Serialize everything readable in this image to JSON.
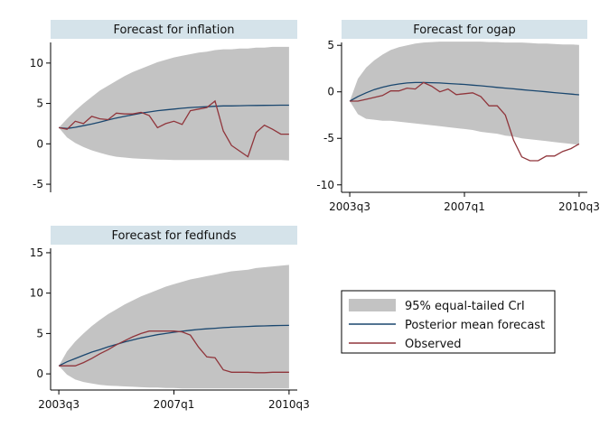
{
  "chart_data": {
    "type": "line",
    "x_ticks": [
      "2003q3",
      "2007q1",
      "2010q3"
    ],
    "x_tick_values": [
      0,
      14,
      28
    ],
    "x_range": [
      -1,
      29
    ],
    "colors": {
      "band": "#c3c3c3",
      "mean": "#1a476f",
      "observed": "#90353b",
      "title_bg": "#d5e3ea"
    },
    "legend": {
      "position": "bottom-right",
      "entries": [
        {
          "label": "95% equal-tailed CrI",
          "kind": "band"
        },
        {
          "label": "Posterior mean forecast",
          "kind": "mean"
        },
        {
          "label": "Observed",
          "kind": "observed"
        }
      ]
    },
    "panels": [
      {
        "title": "Forecast for inflation",
        "y_range": [
          -6,
          13
        ],
        "y_ticks": [
          -5,
          0,
          5,
          10
        ],
        "show_x_labels": false,
        "x": [
          0,
          1,
          2,
          3,
          4,
          5,
          6,
          7,
          8,
          9,
          10,
          11,
          12,
          13,
          14,
          15,
          16,
          17,
          18,
          19,
          20,
          21,
          22,
          23,
          24,
          25,
          26,
          27,
          28
        ],
        "observed": [
          2.0,
          1.8,
          2.8,
          2.5,
          3.4,
          3.1,
          3.0,
          3.8,
          3.7,
          3.7,
          3.9,
          3.5,
          2.0,
          2.5,
          2.8,
          2.4,
          4.1,
          4.3,
          4.5,
          5.3,
          1.6,
          -0.2,
          -0.9,
          -1.6,
          1.4,
          2.3,
          1.8,
          1.2,
          1.2
        ],
        "mean": [
          2.0,
          1.9,
          2.05,
          2.25,
          2.45,
          2.7,
          2.95,
          3.2,
          3.4,
          3.6,
          3.8,
          3.95,
          4.1,
          4.2,
          4.3,
          4.4,
          4.5,
          4.55,
          4.6,
          4.65,
          4.7,
          4.7,
          4.72,
          4.74,
          4.75,
          4.76,
          4.77,
          4.78,
          4.78
        ],
        "upper": [
          2.0,
          3.1,
          4.1,
          5.0,
          5.8,
          6.6,
          7.2,
          7.8,
          8.4,
          8.9,
          9.3,
          9.7,
          10.1,
          10.4,
          10.7,
          10.9,
          11.1,
          11.3,
          11.4,
          11.6,
          11.7,
          11.7,
          11.8,
          11.8,
          11.9,
          11.9,
          12.0,
          12.0,
          12.0
        ],
        "lower": [
          2.0,
          0.8,
          0.1,
          -0.4,
          -0.8,
          -1.1,
          -1.4,
          -1.6,
          -1.7,
          -1.8,
          -1.85,
          -1.9,
          -1.95,
          -1.97,
          -2.0,
          -2.0,
          -2.0,
          -2.0,
          -2.0,
          -2.0,
          -2.0,
          -2.0,
          -2.0,
          -2.0,
          -2.0,
          -2.0,
          -2.0,
          -2.0,
          -2.05
        ]
      },
      {
        "title": "Forecast for ogap",
        "y_range": [
          -10.8,
          5.7
        ],
        "y_ticks": [
          -10,
          -5,
          0,
          5
        ],
        "show_x_labels": true,
        "x": [
          0,
          1,
          2,
          3,
          4,
          5,
          6,
          7,
          8,
          9,
          10,
          11,
          12,
          13,
          14,
          15,
          16,
          17,
          18,
          19,
          20,
          21,
          22,
          23,
          24,
          25,
          26,
          27,
          28
        ],
        "observed": [
          -1.0,
          -1.0,
          -0.8,
          -0.6,
          -0.4,
          0.1,
          0.1,
          0.4,
          0.3,
          1.0,
          0.6,
          0.0,
          0.3,
          -0.3,
          -0.2,
          -0.1,
          -0.5,
          -1.5,
          -1.5,
          -2.5,
          -5.2,
          -7.0,
          -7.4,
          -7.4,
          -6.9,
          -6.9,
          -6.4,
          -6.1,
          -5.6
        ],
        "mean": [
          -1.0,
          -0.5,
          -0.1,
          0.25,
          0.5,
          0.7,
          0.85,
          0.95,
          1.0,
          1.0,
          0.98,
          0.95,
          0.9,
          0.85,
          0.8,
          0.72,
          0.65,
          0.57,
          0.48,
          0.4,
          0.32,
          0.24,
          0.16,
          0.08,
          0.0,
          -0.08,
          -0.16,
          -0.24,
          -0.32
        ],
        "upper": [
          -1.0,
          1.4,
          2.6,
          3.4,
          4.0,
          4.5,
          4.8,
          5.0,
          5.2,
          5.3,
          5.35,
          5.4,
          5.4,
          5.4,
          5.4,
          5.4,
          5.4,
          5.35,
          5.35,
          5.3,
          5.3,
          5.3,
          5.25,
          5.2,
          5.2,
          5.15,
          5.1,
          5.1,
          5.05
        ],
        "lower": [
          -1.0,
          -2.4,
          -2.9,
          -3.0,
          -3.1,
          -3.1,
          -3.2,
          -3.3,
          -3.4,
          -3.5,
          -3.6,
          -3.7,
          -3.8,
          -3.9,
          -4.0,
          -4.1,
          -4.3,
          -4.4,
          -4.5,
          -4.7,
          -4.8,
          -5.0,
          -5.1,
          -5.2,
          -5.3,
          -5.4,
          -5.5,
          -5.6,
          -5.7
        ]
      },
      {
        "title": "Forecast for fedfunds",
        "y_range": [
          -2,
          16
        ],
        "y_ticks": [
          0,
          5,
          10,
          15
        ],
        "show_x_labels": true,
        "x": [
          0,
          1,
          2,
          3,
          4,
          5,
          6,
          7,
          8,
          9,
          10,
          11,
          12,
          13,
          14,
          15,
          16,
          17,
          18,
          19,
          20,
          21,
          22,
          23,
          24,
          25,
          26,
          27,
          28
        ],
        "observed": [
          1.0,
          1.0,
          1.0,
          1.4,
          1.9,
          2.5,
          3.0,
          3.6,
          4.1,
          4.6,
          5.0,
          5.3,
          5.3,
          5.3,
          5.3,
          5.2,
          4.8,
          3.3,
          2.1,
          2.0,
          0.5,
          0.2,
          0.2,
          0.2,
          0.15,
          0.15,
          0.2,
          0.2,
          0.2
        ],
        "mean": [
          1.0,
          1.5,
          1.9,
          2.3,
          2.7,
          3.0,
          3.35,
          3.65,
          3.95,
          4.2,
          4.45,
          4.65,
          4.85,
          5.0,
          5.15,
          5.28,
          5.4,
          5.5,
          5.58,
          5.65,
          5.72,
          5.78,
          5.83,
          5.87,
          5.91,
          5.94,
          5.97,
          5.99,
          6.0
        ],
        "upper": [
          1.0,
          2.8,
          4.0,
          5.0,
          5.9,
          6.7,
          7.4,
          8.0,
          8.6,
          9.1,
          9.6,
          10.0,
          10.4,
          10.8,
          11.1,
          11.4,
          11.7,
          11.9,
          12.1,
          12.3,
          12.5,
          12.7,
          12.8,
          12.9,
          13.1,
          13.2,
          13.3,
          13.4,
          13.5
        ],
        "lower": [
          1.0,
          -0.1,
          -0.7,
          -1.0,
          -1.2,
          -1.35,
          -1.45,
          -1.5,
          -1.55,
          -1.6,
          -1.65,
          -1.7,
          -1.7,
          -1.75,
          -1.75,
          -1.8,
          -1.8,
          -1.8,
          -1.8,
          -1.8,
          -1.8,
          -1.8,
          -1.8,
          -1.8,
          -1.8,
          -1.8,
          -1.8,
          -1.8,
          -1.8
        ]
      }
    ]
  }
}
